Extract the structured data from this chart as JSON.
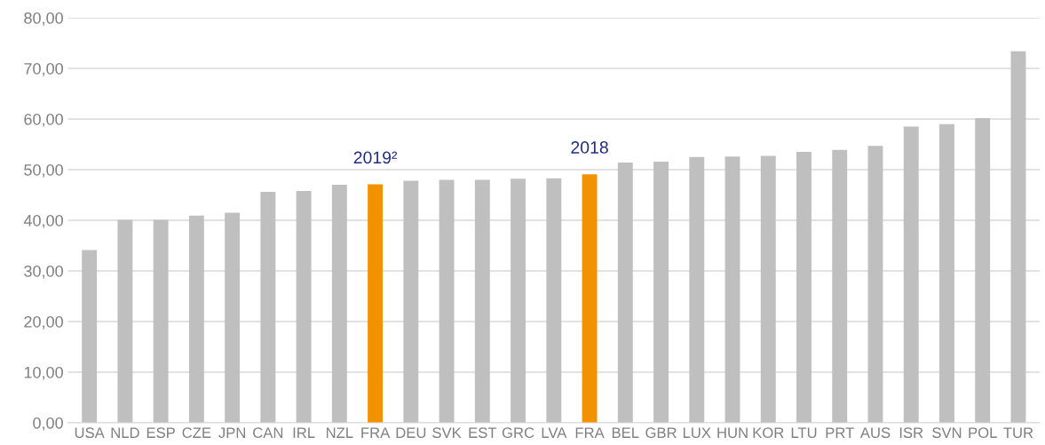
{
  "chart_data": {
    "type": "bar",
    "categories": [
      "USA",
      "NLD",
      "ESP",
      "CZE",
      "JPN",
      "CAN",
      "IRL",
      "NZL",
      "FRA",
      "DEU",
      "SVK",
      "EST",
      "GRC",
      "LVA",
      "FRA",
      "BEL",
      "GBR",
      "LUX",
      "HUN",
      "KOR",
      "LTU",
      "PRT",
      "AUS",
      "ISR",
      "SVN",
      "POL",
      "TUR"
    ],
    "values": [
      34.1,
      40.1,
      40.1,
      40.9,
      41.5,
      45.6,
      45.8,
      47.0,
      47.1,
      47.8,
      48.0,
      48.0,
      48.2,
      48.3,
      49.1,
      51.4,
      51.6,
      52.5,
      52.6,
      52.7,
      53.5,
      53.9,
      54.7,
      58.5,
      59.0,
      60.2,
      73.4
    ],
    "colors": [
      "#bfbfbf",
      "#bfbfbf",
      "#bfbfbf",
      "#bfbfbf",
      "#bfbfbf",
      "#bfbfbf",
      "#bfbfbf",
      "#bfbfbf",
      "#f39200",
      "#bfbfbf",
      "#bfbfbf",
      "#bfbfbf",
      "#bfbfbf",
      "#bfbfbf",
      "#f39200",
      "#bfbfbf",
      "#bfbfbf",
      "#bfbfbf",
      "#bfbfbf",
      "#bfbfbf",
      "#bfbfbf",
      "#bfbfbf",
      "#bfbfbf",
      "#bfbfbf",
      "#bfbfbf",
      "#bfbfbf",
      "#bfbfbf"
    ],
    "annotations": [
      "2019²",
      "2018"
    ],
    "ylim": [
      0,
      80
    ],
    "yticks": [
      {
        "value": 0,
        "label": "0,00"
      },
      {
        "value": 10,
        "label": "10,00"
      },
      {
        "value": 20,
        "label": "20,00"
      },
      {
        "value": 30,
        "label": "30,00"
      },
      {
        "value": 40,
        "label": "40,00"
      },
      {
        "value": 50,
        "label": "50,00"
      },
      {
        "value": 60,
        "label": "60,00"
      },
      {
        "value": 70,
        "label": "70,00"
      },
      {
        "value": 80,
        "label": "80,00"
      }
    ],
    "grid": "y"
  }
}
